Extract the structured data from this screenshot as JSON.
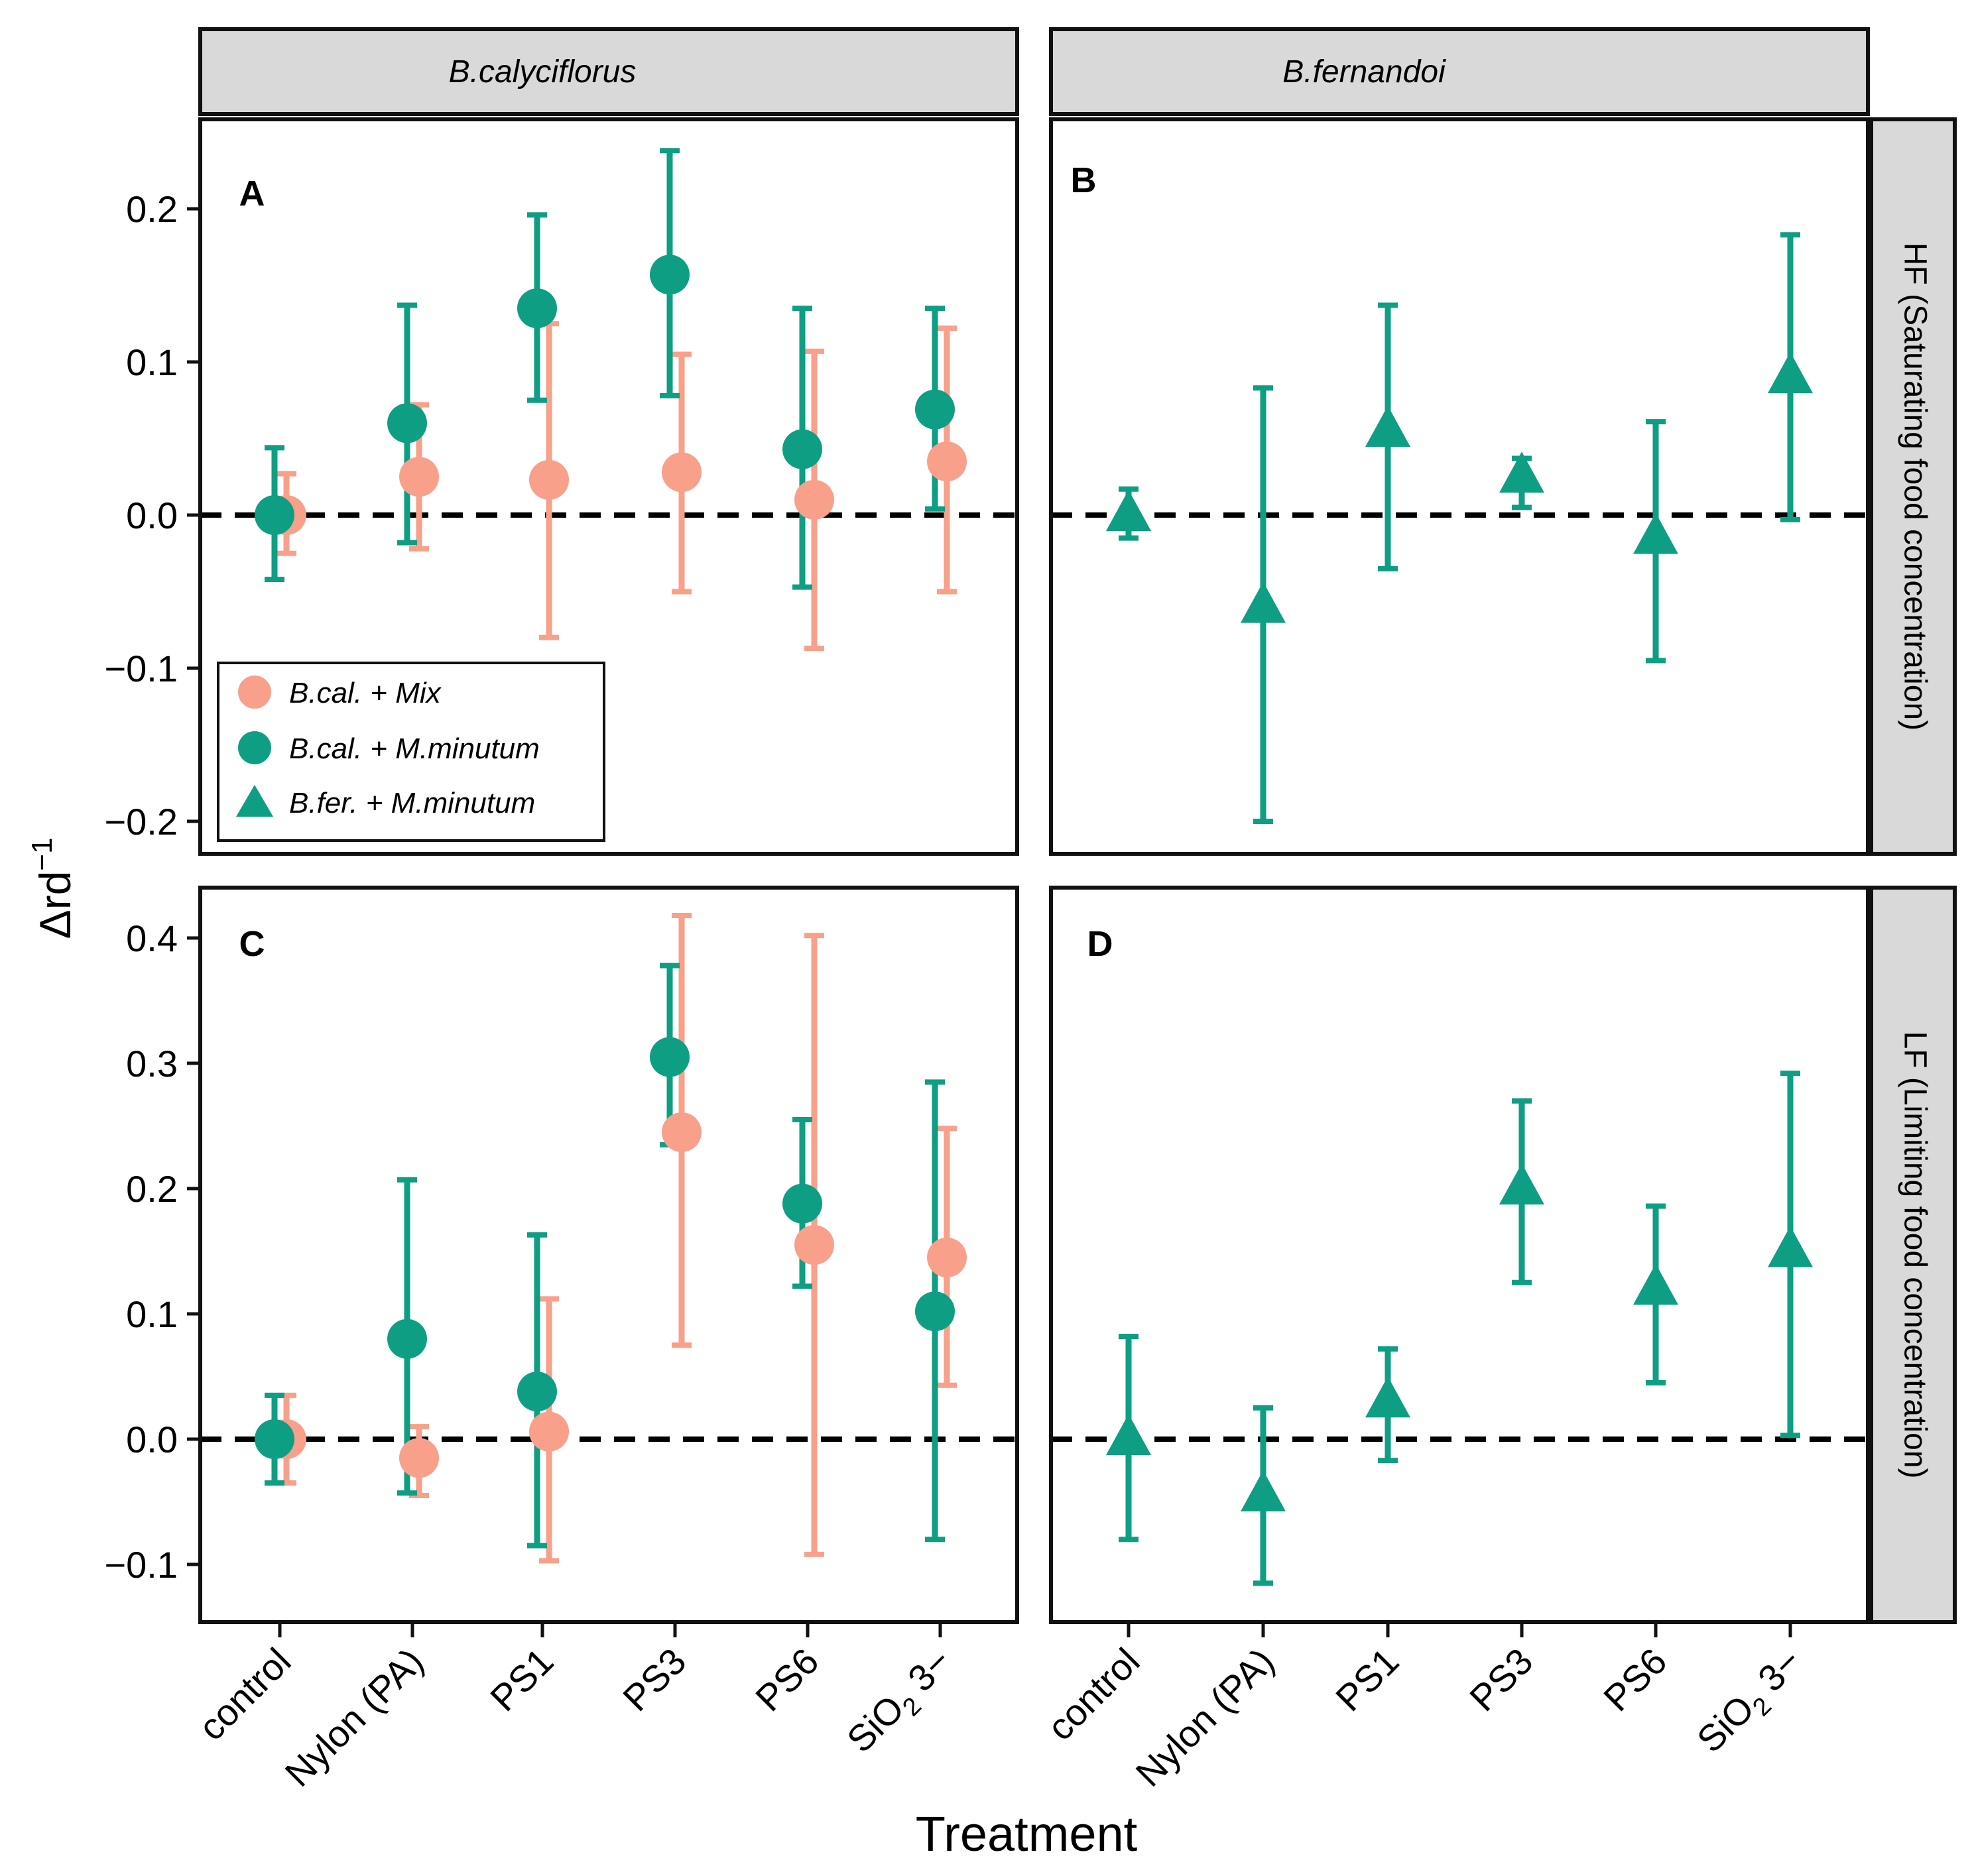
{
  "figure": {
    "x_axis_title": "Treatment",
    "y_axis_title": "Δrd",
    "y_axis_title_sup": "−1",
    "column_strips": [
      "B.calyciflorus",
      "B.fernandoi"
    ],
    "row_strips": [
      "HF (Saturating food concentration)",
      "LF (Limiting food concentration)"
    ],
    "colors": {
      "mix": "#F8A08A",
      "minutum": "#0E9E83"
    }
  },
  "legend": {
    "items": [
      {
        "label": "B.cal. + Mix",
        "series": "mix",
        "shape": "circle"
      },
      {
        "label": "B.cal. + M.minutum",
        "series": "minutum",
        "shape": "circle"
      },
      {
        "label": "B.fer. + M.minutum",
        "series": "minutum",
        "shape": "triangle"
      }
    ]
  },
  "chart_data": [
    {
      "type": "scatter",
      "panel": "A",
      "column": "B.calyciflorus",
      "row": "HF (Saturating food concentration)",
      "categories": [
        "control",
        "Nylon (PA)",
        "PS1",
        "PS3",
        "PS6",
        "SiO2 3−"
      ],
      "xlabel": "Treatment",
      "ylabel": "Δrd−1",
      "ylim": [
        -0.22,
        0.26
      ],
      "yticks": [
        -0.2,
        -0.1,
        0.0,
        0.1,
        0.2
      ],
      "ytick_labels": [
        "−0.2",
        "−0.1",
        "0.0",
        "0.1",
        "0.2"
      ],
      "reference_line": 0,
      "series": [
        {
          "name": "B.cal. + Mix",
          "key": "mix",
          "shape": "circle",
          "values": [
            0.0,
            0.025,
            0.023,
            0.028,
            0.01,
            0.035
          ],
          "lower": [
            -0.025,
            -0.022,
            -0.08,
            -0.05,
            -0.087,
            -0.05
          ],
          "upper": [
            0.027,
            0.072,
            0.125,
            0.105,
            0.107,
            0.122
          ]
        },
        {
          "name": "B.cal. + M.minutum",
          "key": "minutum",
          "shape": "circle",
          "values": [
            0.0,
            0.06,
            0.135,
            0.157,
            0.043,
            0.069
          ],
          "lower": [
            -0.042,
            -0.018,
            0.075,
            0.078,
            -0.047,
            0.004
          ],
          "upper": [
            0.044,
            0.137,
            0.196,
            0.238,
            0.135,
            0.135
          ]
        }
      ]
    },
    {
      "type": "scatter",
      "panel": "B",
      "column": "B.fernandoi",
      "row": "HF (Saturating food concentration)",
      "categories": [
        "control",
        "Nylon (PA)",
        "PS1",
        "PS3",
        "PS6",
        "SiO2 3−"
      ],
      "xlabel": "Treatment",
      "ylabel": "Δrd−1",
      "ylim": [
        -0.22,
        0.26
      ],
      "yticks": [
        -0.2,
        -0.1,
        0.0,
        0.1,
        0.2
      ],
      "reference_line": 0,
      "series": [
        {
          "name": "B.fer. + M.minutum",
          "key": "minutum",
          "shape": "triangle",
          "values": [
            0.0,
            -0.06,
            0.055,
            0.025,
            -0.015,
            0.09
          ],
          "lower": [
            -0.015,
            -0.2,
            -0.035,
            0.005,
            -0.095,
            -0.003
          ],
          "upper": [
            0.017,
            0.083,
            0.137,
            0.037,
            0.061,
            0.183
          ]
        }
      ]
    },
    {
      "type": "scatter",
      "panel": "C",
      "column": "B.calyciflorus",
      "row": "LF (Limiting food concentration)",
      "categories": [
        "control",
        "Nylon (PA)",
        "PS1",
        "PS3",
        "PS6",
        "SiO2 3−"
      ],
      "xlabel": "Treatment",
      "ylabel": "Δrd−1",
      "ylim": [
        -0.145,
        0.445
      ],
      "yticks": [
        -0.1,
        0.0,
        0.1,
        0.2,
        0.3,
        0.4
      ],
      "ytick_labels": [
        "−0.1",
        "0.0",
        "0.1",
        "0.2",
        "0.3",
        "0.4"
      ],
      "reference_line": 0,
      "series": [
        {
          "name": "B.cal. + Mix",
          "key": "mix",
          "shape": "circle",
          "values": [
            0.0,
            -0.015,
            0.006,
            0.245,
            0.155,
            0.145
          ],
          "lower": [
            -0.035,
            -0.045,
            -0.097,
            0.075,
            -0.092,
            0.043
          ],
          "upper": [
            0.035,
            0.01,
            0.112,
            0.418,
            0.402,
            0.248
          ]
        },
        {
          "name": "B.cal. + M.minutum",
          "key": "minutum",
          "shape": "circle",
          "values": [
            0.0,
            0.08,
            0.038,
            0.305,
            0.188,
            0.102
          ],
          "lower": [
            -0.035,
            -0.043,
            -0.085,
            0.235,
            0.122,
            -0.08
          ],
          "upper": [
            0.035,
            0.207,
            0.163,
            0.378,
            0.255,
            0.285
          ]
        }
      ]
    },
    {
      "type": "scatter",
      "panel": "D",
      "column": "B.fernandoi",
      "row": "LF (Limiting food concentration)",
      "categories": [
        "control",
        "Nylon (PA)",
        "PS1",
        "PS3",
        "PS6",
        "SiO2 3−"
      ],
      "xlabel": "Treatment",
      "ylabel": "Δrd−1",
      "ylim": [
        -0.145,
        0.445
      ],
      "yticks": [
        -0.1,
        0.0,
        0.1,
        0.2,
        0.3,
        0.4
      ],
      "reference_line": 0,
      "series": [
        {
          "name": "B.fer. + M.minutum",
          "key": "minutum",
          "shape": "triangle",
          "values": [
            0.0,
            -0.045,
            0.03,
            0.2,
            0.12,
            0.15
          ],
          "lower": [
            -0.08,
            -0.115,
            -0.017,
            0.125,
            0.045,
            0.003
          ],
          "upper": [
            0.082,
            0.025,
            0.072,
            0.27,
            0.186,
            0.292
          ]
        }
      ]
    }
  ]
}
